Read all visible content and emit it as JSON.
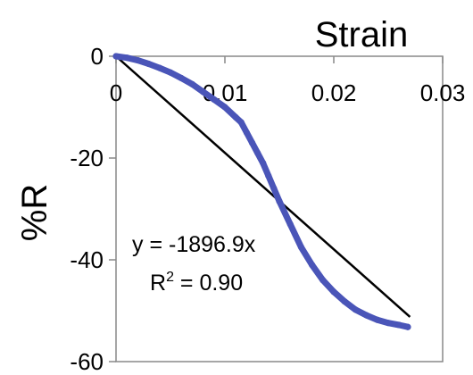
{
  "chart_data": {
    "type": "scatter",
    "xlabel": "Strain",
    "ylabel": "%R",
    "xlim": [
      0,
      0.03
    ],
    "ylim": [
      -60,
      0
    ],
    "x_ticks": [
      {
        "value": 0,
        "label": "0"
      },
      {
        "value": 0.01,
        "label": "0.01"
      },
      {
        "value": 0.02,
        "label": "0.02"
      },
      {
        "value": 0.03,
        "label": "0.03"
      }
    ],
    "y_ticks": [
      {
        "value": 0,
        "label": "0"
      },
      {
        "value": -20,
        "label": "-20"
      },
      {
        "value": -40,
        "label": "-40"
      },
      {
        "value": -60,
        "label": "-60"
      }
    ],
    "x_axis_position": "top",
    "grid": false,
    "legend": "none",
    "series": [
      {
        "color": "#4a55b8",
        "points": [
          [
            0.0,
            0.0
          ],
          [
            0.001,
            -0.3
          ],
          [
            0.002,
            -0.8
          ],
          [
            0.003,
            -1.5
          ],
          [
            0.004,
            -2.3
          ],
          [
            0.005,
            -3.2
          ],
          [
            0.006,
            -4.3
          ],
          [
            0.007,
            -5.5
          ],
          [
            0.008,
            -7.0
          ],
          [
            0.009,
            -8.5
          ],
          [
            0.01,
            -10.0
          ],
          [
            0.011,
            -12.0
          ],
          [
            0.0115,
            -13.0
          ],
          [
            0.012,
            -15.0
          ],
          [
            0.0125,
            -17.0
          ],
          [
            0.013,
            -19.0
          ],
          [
            0.0135,
            -21.0
          ],
          [
            0.014,
            -23.5
          ],
          [
            0.0145,
            -26.0
          ],
          [
            0.015,
            -28.5
          ],
          [
            0.016,
            -33.0
          ],
          [
            0.017,
            -37.5
          ],
          [
            0.018,
            -41.0
          ],
          [
            0.019,
            -44.0
          ],
          [
            0.02,
            -46.3
          ],
          [
            0.021,
            -48.2
          ],
          [
            0.022,
            -49.8
          ],
          [
            0.023,
            -50.9
          ],
          [
            0.024,
            -51.8
          ],
          [
            0.025,
            -52.4
          ],
          [
            0.026,
            -52.8
          ],
          [
            0.0268,
            -53.2
          ]
        ]
      }
    ],
    "trendline": {
      "color": "#000000",
      "slope": -1896.9,
      "x_range": [
        0,
        0.027
      ],
      "equation_label": "y = -1896.9x",
      "r2_label": "R",
      "r2_sup": "2",
      "r2_value": " = 0.90"
    }
  }
}
